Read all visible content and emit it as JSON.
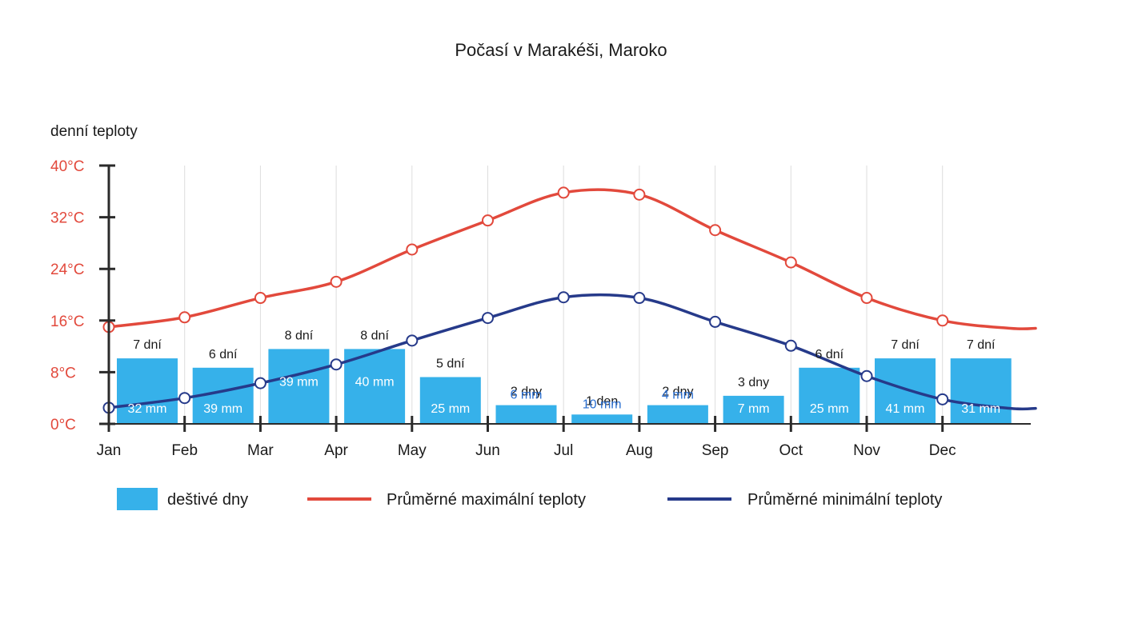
{
  "chart_data": {
    "type": "bar",
    "title": "Počasí v Marakéši, Maroko",
    "ylabel": "denní teploty",
    "ylim": [
      0,
      40
    ],
    "y_ticks": [
      "0°C",
      "8°C",
      "16°C",
      "24°C",
      "32°C",
      "40°C"
    ],
    "y_tick_values": [
      0,
      8,
      16,
      24,
      32,
      40
    ],
    "categories": [
      "Jan",
      "Feb",
      "Mar",
      "Apr",
      "May",
      "Jun",
      "Jul",
      "Aug",
      "Sep",
      "Oct",
      "Nov",
      "Dec"
    ],
    "grid": "vertical",
    "legend_position": "bottom",
    "series": [
      {
        "name": "deštivé dny",
        "kind": "bar",
        "color": "#36b1ea",
        "rainy_days": [
          7,
          6,
          8,
          8,
          5,
          2,
          1,
          2,
          3,
          6,
          7,
          7
        ],
        "rainy_days_labels": [
          "7 dní",
          "6 dní",
          "8 dní",
          "8 dní",
          "5 dní",
          "2 dny",
          "1 den",
          "2 dny",
          "3 dny",
          "6 dní",
          "7 dní",
          "7 dní"
        ],
        "precipitation_labels": [
          "32 mm",
          "39 mm",
          "39 mm",
          "40 mm",
          "25 mm",
          "6 mm",
          "10 mm",
          "4  mm",
          "7 mm",
          "25 mm",
          "41 mm",
          "31 mm"
        ]
      },
      {
        "name": "Průměrné maximální teploty",
        "kind": "line",
        "color": "#e2493c",
        "values": [
          15,
          16.5,
          19.5,
          22,
          27,
          31.5,
          35.8,
          35.5,
          30,
          25,
          19.5,
          16
        ]
      },
      {
        "name": "Průměrné minimální teploty",
        "kind": "line",
        "color": "#263a8a",
        "values": [
          2.5,
          4,
          6.3,
          9.2,
          12.9,
          16.4,
          19.6,
          19.5,
          15.8,
          12.1,
          7.4,
          3.8
        ]
      }
    ]
  }
}
